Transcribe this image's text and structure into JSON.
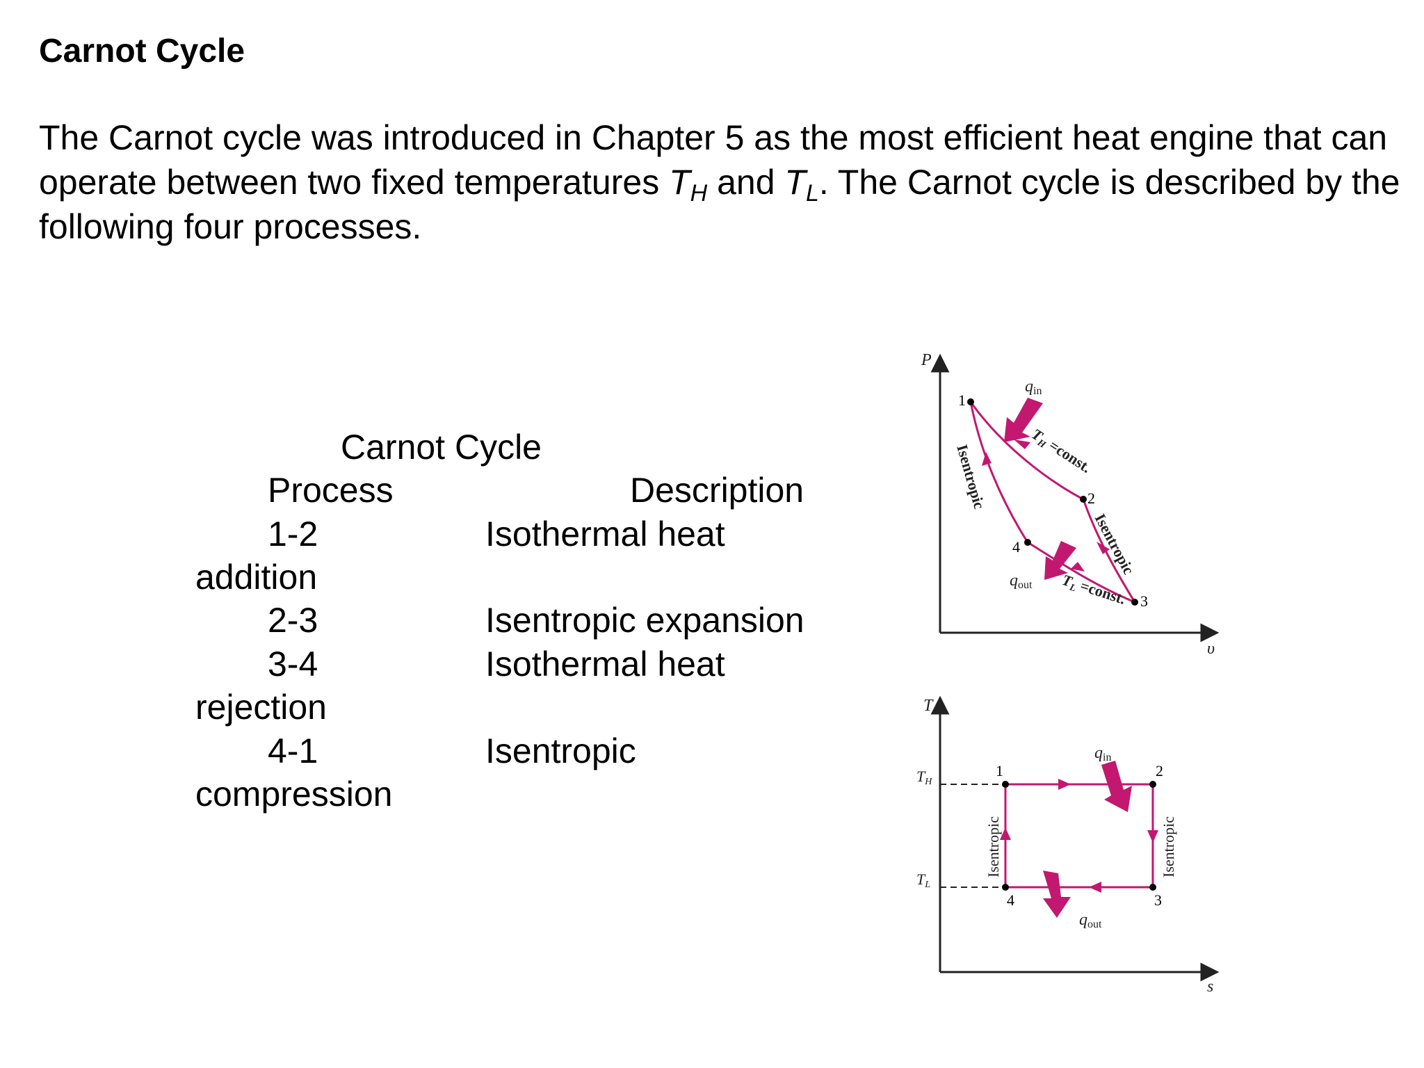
{
  "title": "Carnot Cycle",
  "intro": {
    "part1": "The Carnot cycle was introduced in Chapter 5 as the most efficient heat engine that can operate between two fixed temperatures ",
    "th_T": "T",
    "th_sub": "H",
    "and": " and ",
    "tl_T": "T",
    "tl_sub": "L",
    "part2": ".  The Carnot cycle is described by the following four processes."
  },
  "table": {
    "caption": "Carnot Cycle",
    "col_process": "Process",
    "col_description": "Description",
    "rows": [
      {
        "process": "1-2",
        "desc_line1": "Isothermal heat",
        "desc_line2": "addition"
      },
      {
        "process": "2-3",
        "desc_line1": "Isentropic expansion",
        "desc_line2": ""
      },
      {
        "process": "3-4",
        "desc_line1": "Isothermal heat",
        "desc_line2": "rejection"
      },
      {
        "process": "4-1",
        "desc_line1": "Isentropic",
        "desc_line2": "compression"
      }
    ]
  },
  "pv_diagram": {
    "axis_y": "P",
    "axis_x": "υ",
    "points": [
      "1",
      "2",
      "3",
      "4"
    ],
    "q_in": "q",
    "q_in_sub": "in",
    "q_out": "q",
    "q_out_sub": "out",
    "th_label_T": "T",
    "th_label_sub": "H",
    "th_label_rest": " =const.",
    "tl_label_T": "T",
    "tl_label_sub": "L",
    "tl_label_rest": " =const.",
    "isentropic_left": "Isentropic",
    "isentropic_right": "Isentropic"
  },
  "ts_diagram": {
    "axis_y": "T",
    "axis_x": "s",
    "th_T": "T",
    "th_sub": "H",
    "tl_T": "T",
    "tl_sub": "L",
    "points": [
      "1",
      "2",
      "3",
      "4"
    ],
    "q_in": "q",
    "q_in_sub": "in",
    "q_out": "q",
    "q_out_sub": "out",
    "isentropic_left": "Isentropic",
    "isentropic_right": "Isentropic"
  },
  "colors": {
    "cycle": "#c2186f",
    "text": "#000000",
    "axis": "#222222"
  }
}
